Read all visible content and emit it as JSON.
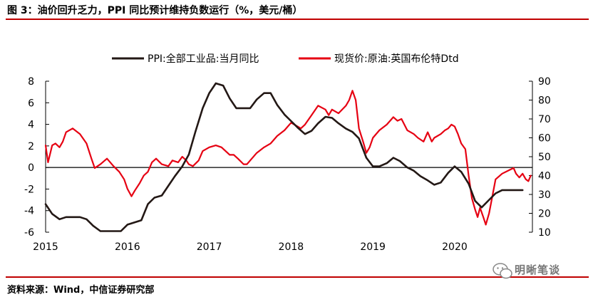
{
  "header": {
    "title": "图 3：油价回升乏力，PPI 同比预计维持负数运行（%，美元/桶）"
  },
  "footer": {
    "source": "资料来源：Wind，中信证券研究部",
    "watermark": "明晰笔谈"
  },
  "colors": {
    "accent": "#C00000",
    "ppi": "#231815",
    "oil": "#E60012"
  },
  "chart_data": {
    "type": "line",
    "title": "图 3：油价回升乏力，PPI 同比预计维持负数运行（%，美元/桶）",
    "legend_position": "top",
    "x_ticks": [
      "2015",
      "2016",
      "2017",
      "2018",
      "2019",
      "2020"
    ],
    "left_axis": {
      "ylim": [
        -6,
        8
      ],
      "ticks": [
        -6,
        -4,
        -2,
        0,
        2,
        4,
        6,
        8
      ]
    },
    "right_axis": {
      "ylim": [
        10,
        90
      ],
      "ticks": [
        10,
        20,
        30,
        40,
        50,
        60,
        70,
        80,
        90
      ]
    },
    "series": [
      {
        "name": "PPI:全部工业品:当月同比",
        "axis": "left",
        "color": "#231815",
        "points": [
          [
            2015.0,
            -3.4
          ],
          [
            2015.08,
            -4.3
          ],
          [
            2015.17,
            -4.8
          ],
          [
            2015.25,
            -4.6
          ],
          [
            2015.42,
            -4.6
          ],
          [
            2015.5,
            -4.8
          ],
          [
            2015.58,
            -5.4
          ],
          [
            2015.67,
            -5.9
          ],
          [
            2015.83,
            -5.9
          ],
          [
            2015.92,
            -5.9
          ],
          [
            2016.0,
            -5.3
          ],
          [
            2016.17,
            -4.9
          ],
          [
            2016.25,
            -3.4
          ],
          [
            2016.33,
            -2.8
          ],
          [
            2016.42,
            -2.6
          ],
          [
            2016.5,
            -1.7
          ],
          [
            2016.58,
            -0.8
          ],
          [
            2016.67,
            0.1
          ],
          [
            2016.75,
            1.2
          ],
          [
            2016.83,
            3.3
          ],
          [
            2016.92,
            5.5
          ],
          [
            2017.0,
            6.9
          ],
          [
            2017.08,
            7.8
          ],
          [
            2017.17,
            7.6
          ],
          [
            2017.25,
            6.4
          ],
          [
            2017.33,
            5.5
          ],
          [
            2017.5,
            5.5
          ],
          [
            2017.58,
            6.3
          ],
          [
            2017.67,
            6.9
          ],
          [
            2017.75,
            6.9
          ],
          [
            2017.83,
            5.8
          ],
          [
            2017.92,
            4.9
          ],
          [
            2018.0,
            4.3
          ],
          [
            2018.08,
            3.7
          ],
          [
            2018.17,
            3.1
          ],
          [
            2018.25,
            3.4
          ],
          [
            2018.33,
            4.1
          ],
          [
            2018.42,
            4.7
          ],
          [
            2018.5,
            4.6
          ],
          [
            2018.58,
            4.1
          ],
          [
            2018.67,
            3.6
          ],
          [
            2018.75,
            3.3
          ],
          [
            2018.83,
            2.7
          ],
          [
            2018.92,
            0.9
          ],
          [
            2019.0,
            0.1
          ],
          [
            2019.08,
            0.1
          ],
          [
            2019.17,
            0.4
          ],
          [
            2019.25,
            0.9
          ],
          [
            2019.33,
            0.6
          ],
          [
            2019.42,
            0.0
          ],
          [
            2019.5,
            -0.3
          ],
          [
            2019.58,
            -0.8
          ],
          [
            2019.67,
            -1.2
          ],
          [
            2019.75,
            -1.6
          ],
          [
            2019.83,
            -1.4
          ],
          [
            2019.92,
            -0.5
          ],
          [
            2020.0,
            0.1
          ],
          [
            2020.08,
            -0.4
          ],
          [
            2020.17,
            -1.5
          ],
          [
            2020.25,
            -3.1
          ],
          [
            2020.33,
            -3.7
          ],
          [
            2020.42,
            -3.0
          ],
          [
            2020.5,
            -2.4
          ],
          [
            2020.58,
            -2.1
          ],
          [
            2020.75,
            -2.1
          ],
          [
            2020.83,
            -2.1
          ]
        ]
      },
      {
        "name": "现货价:原油:英国布伦特Dtd",
        "axis": "right",
        "color": "#E60012",
        "points": [
          [
            2015.0,
            56
          ],
          [
            2015.03,
            47
          ],
          [
            2015.08,
            56
          ],
          [
            2015.12,
            57
          ],
          [
            2015.17,
            55
          ],
          [
            2015.21,
            58
          ],
          [
            2015.25,
            63
          ],
          [
            2015.33,
            65
          ],
          [
            2015.42,
            62
          ],
          [
            2015.5,
            57
          ],
          [
            2015.56,
            49
          ],
          [
            2015.6,
            44
          ],
          [
            2015.67,
            46
          ],
          [
            2015.75,
            49
          ],
          [
            2015.83,
            45
          ],
          [
            2015.9,
            42
          ],
          [
            2015.96,
            38
          ],
          [
            2016.0,
            33
          ],
          [
            2016.05,
            29
          ],
          [
            2016.09,
            32
          ],
          [
            2016.15,
            36
          ],
          [
            2016.2,
            40
          ],
          [
            2016.25,
            42
          ],
          [
            2016.3,
            47
          ],
          [
            2016.35,
            49
          ],
          [
            2016.42,
            46
          ],
          [
            2016.5,
            45
          ],
          [
            2016.55,
            48
          ],
          [
            2016.62,
            47
          ],
          [
            2016.67,
            50
          ],
          [
            2016.72,
            48
          ],
          [
            2016.75,
            46
          ],
          [
            2016.8,
            45
          ],
          [
            2016.87,
            48
          ],
          [
            2016.92,
            53
          ],
          [
            2017.0,
            55
          ],
          [
            2017.08,
            56
          ],
          [
            2017.15,
            55
          ],
          [
            2017.2,
            53
          ],
          [
            2017.25,
            51
          ],
          [
            2017.3,
            51
          ],
          [
            2017.35,
            49
          ],
          [
            2017.42,
            46
          ],
          [
            2017.46,
            46
          ],
          [
            2017.5,
            48
          ],
          [
            2017.58,
            52
          ],
          [
            2017.67,
            55
          ],
          [
            2017.75,
            57
          ],
          [
            2017.83,
            61
          ],
          [
            2017.92,
            64
          ],
          [
            2018.0,
            68
          ],
          [
            2018.08,
            66
          ],
          [
            2018.12,
            65
          ],
          [
            2018.17,
            67
          ],
          [
            2018.25,
            72
          ],
          [
            2018.33,
            77
          ],
          [
            2018.42,
            75
          ],
          [
            2018.46,
            72
          ],
          [
            2018.5,
            75
          ],
          [
            2018.58,
            73
          ],
          [
            2018.67,
            77
          ],
          [
            2018.71,
            80
          ],
          [
            2018.75,
            85
          ],
          [
            2018.79,
            80
          ],
          [
            2018.83,
            65
          ],
          [
            2018.88,
            58
          ],
          [
            2018.92,
            52
          ],
          [
            2018.96,
            55
          ],
          [
            2019.0,
            60
          ],
          [
            2019.08,
            64
          ],
          [
            2019.17,
            67
          ],
          [
            2019.25,
            71
          ],
          [
            2019.3,
            69
          ],
          [
            2019.35,
            70
          ],
          [
            2019.42,
            64
          ],
          [
            2019.5,
            62
          ],
          [
            2019.55,
            60
          ],
          [
            2019.62,
            58
          ],
          [
            2019.67,
            63
          ],
          [
            2019.72,
            58
          ],
          [
            2019.75,
            60
          ],
          [
            2019.83,
            62
          ],
          [
            2019.88,
            64
          ],
          [
            2019.92,
            65
          ],
          [
            2019.96,
            67
          ],
          [
            2020.0,
            66
          ],
          [
            2020.04,
            62
          ],
          [
            2020.08,
            57
          ],
          [
            2020.13,
            54
          ],
          [
            2020.17,
            40
          ],
          [
            2020.21,
            28
          ],
          [
            2020.25,
            22
          ],
          [
            2020.28,
            18
          ],
          [
            2020.31,
            23
          ],
          [
            2020.35,
            18
          ],
          [
            2020.38,
            14
          ],
          [
            2020.42,
            20
          ],
          [
            2020.46,
            29
          ],
          [
            2020.5,
            38
          ],
          [
            2020.58,
            41
          ],
          [
            2020.67,
            43
          ],
          [
            2020.72,
            44
          ],
          [
            2020.75,
            41
          ],
          [
            2020.79,
            39
          ],
          [
            2020.83,
            41
          ],
          [
            2020.87,
            38
          ],
          [
            2020.9,
            37
          ],
          [
            2020.93,
            40
          ]
        ]
      }
    ]
  }
}
